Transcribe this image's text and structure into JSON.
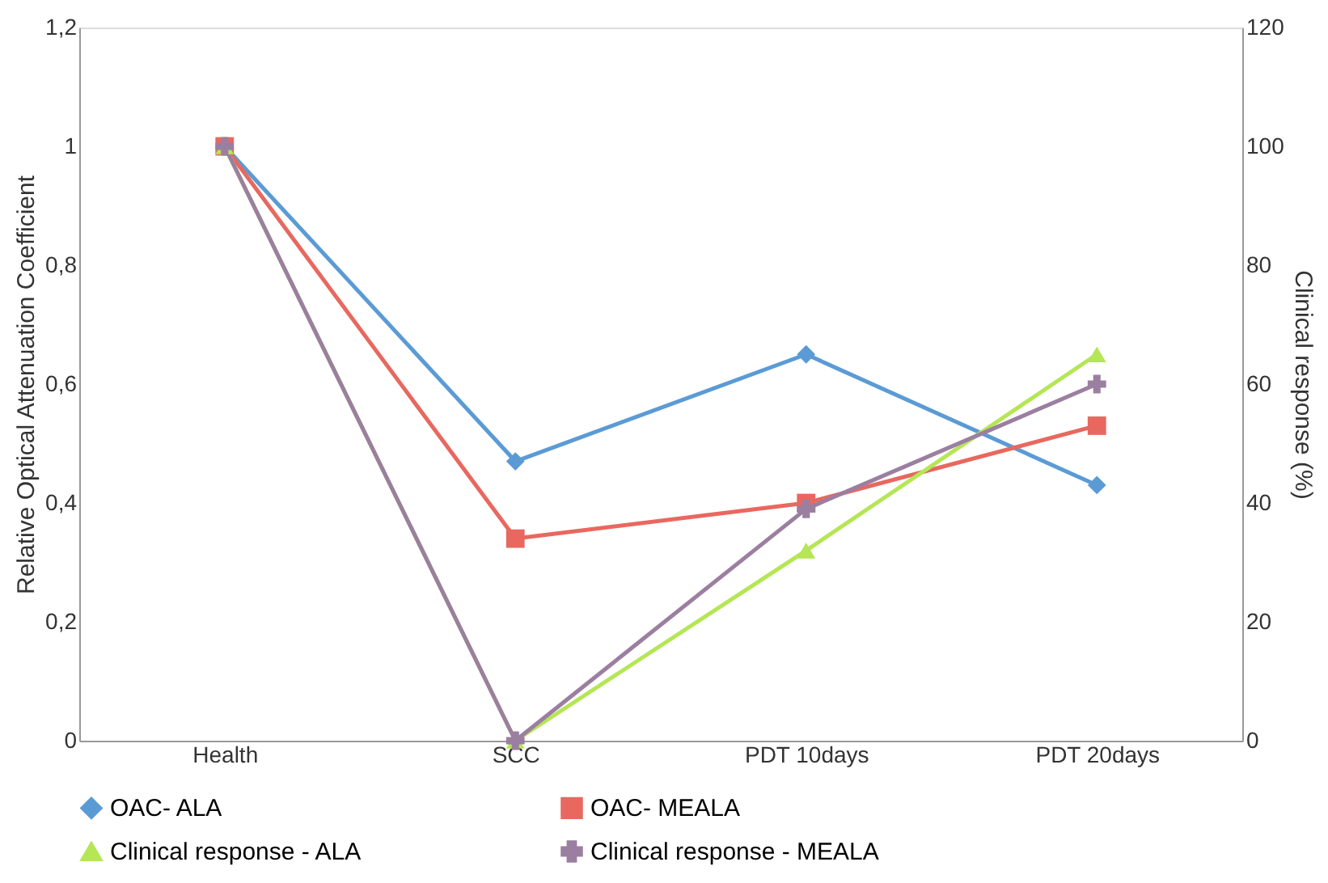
{
  "chart_data": {
    "type": "line",
    "ylabel": "Relative Optical Attenuation Coefficient",
    "y2label": "Clinical response (%)",
    "categories": [
      "Health",
      "SCC",
      "PDT 10days",
      "PDT 20days"
    ],
    "ylim": [
      0,
      1.2
    ],
    "yticks": [
      0,
      {
        "value": 0.2,
        "label": "0,2"
      },
      {
        "value": 0.4,
        "label": "0,4"
      },
      {
        "value": 0.6,
        "label": "0,6"
      },
      {
        "value": 0.8,
        "label": "0,8"
      },
      1,
      {
        "value": 1.2,
        "label": "1,2"
      }
    ],
    "y2lim": [
      0,
      120
    ],
    "y2ticks": [
      0,
      20,
      40,
      60,
      80,
      100,
      120
    ],
    "grid": false,
    "legend": "bottom",
    "series": [
      {
        "name": "OAC- ALA",
        "color": "#5b9bd5",
        "marker": "diamond",
        "values": [
          1,
          0.47,
          0.65,
          0.43
        ]
      },
      {
        "name": "OAC- MEALA",
        "color": "#e8685f",
        "marker": "square",
        "values": [
          1,
          0.34,
          0.4,
          0.53
        ]
      },
      {
        "name": "Clinical response - ALA",
        "color": "#b5e655",
        "marker": "triangle",
        "axis": "y2",
        "values": [
          100,
          0,
          32,
          65
        ]
      },
      {
        "name": "Clinical response - MEALA",
        "color": "#9b7fa0",
        "marker": "cross",
        "axis": "y2",
        "values": [
          100,
          0,
          39,
          60
        ]
      }
    ]
  }
}
